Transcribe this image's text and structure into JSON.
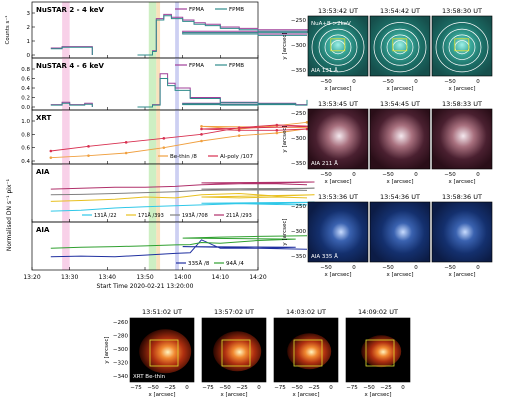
{
  "chart_data": [
    {
      "type": "line",
      "panel": "nustar_low",
      "title": "NuSTAR 2 - 4 keV",
      "ylabel": "Counts s⁻¹",
      "ylim": [
        0,
        3
      ],
      "yticks": [
        "0",
        "1",
        "2",
        "3"
      ],
      "legend": "top-right",
      "series": [
        {
          "name": "FPMA",
          "color": "#a0409a",
          "x": [
            13.25,
            13.28,
            13.3,
            13.34,
            13.36,
            13.46,
            13.48,
            13.52,
            13.53,
            13.55,
            13.57,
            13.6,
            13.63,
            13.66,
            13.7,
            13.75,
            13.8,
            13.88,
            13.95,
            14.0,
            14.1,
            14.2,
            14.3,
            14.33
          ],
          "y": [
            0.5,
            0.6,
            0.6,
            0.6,
            0.0,
            null,
            0.0,
            0.3,
            2.6,
            2.9,
            2.7,
            2.5,
            2.3,
            2.2,
            2.0,
            1.9,
            1.8,
            1.8,
            1.7,
            1.6,
            1.6,
            1.5,
            1.5,
            1.5
          ]
        },
        {
          "name": "FPMB",
          "color": "#2e8b8b",
          "x": [
            13.25,
            13.28,
            13.3,
            13.34,
            13.36,
            13.46,
            13.48,
            13.52,
            13.53,
            13.55,
            13.57,
            13.6,
            13.63,
            13.66,
            13.7,
            13.75,
            13.8,
            13.88,
            13.95,
            14.0,
            14.1,
            14.2,
            14.3,
            14.33
          ],
          "y": [
            0.45,
            0.55,
            0.55,
            0.55,
            0.0,
            null,
            0.0,
            0.25,
            2.5,
            2.8,
            2.6,
            2.4,
            2.2,
            2.1,
            1.9,
            1.8,
            1.7,
            1.7,
            1.6,
            1.5,
            1.5,
            1.4,
            1.4,
            1.4
          ]
        }
      ]
    },
    {
      "type": "line",
      "panel": "nustar_high",
      "title": "NuSTAR 4 - 6 keV",
      "ylim": [
        0,
        0.8
      ],
      "yticks": [
        "0.0",
        "0.2",
        "0.4",
        "0.6",
        "0.8"
      ],
      "legend": "top-right",
      "series": [
        {
          "name": "FPMA",
          "color": "#a0409a",
          "x": [
            13.25,
            13.28,
            13.3,
            13.34,
            13.36,
            13.46,
            13.48,
            13.52,
            13.54,
            13.56,
            13.58,
            13.62,
            13.7,
            13.8,
            13.9,
            14.0,
            14.1,
            14.2,
            14.3,
            14.33
          ],
          "y": [
            0.05,
            0.1,
            0.05,
            0.08,
            0.0,
            null,
            0.0,
            0.05,
            0.7,
            0.5,
            0.4,
            0.2,
            0.1,
            0.08,
            0.06,
            0.08,
            0.05,
            0.07,
            0.05,
            0.1
          ]
        },
        {
          "name": "FPMB",
          "color": "#2e8b8b",
          "x": [
            13.25,
            13.28,
            13.3,
            13.34,
            13.36,
            13.46,
            13.48,
            13.52,
            13.54,
            13.56,
            13.58,
            13.62,
            13.7,
            13.8,
            13.9,
            14.0,
            14.1,
            14.2,
            14.3,
            14.33
          ],
          "y": [
            0.04,
            0.08,
            0.04,
            0.06,
            0.0,
            null,
            0.0,
            0.04,
            0.6,
            0.45,
            0.35,
            0.18,
            0.09,
            0.07,
            0.05,
            0.07,
            0.04,
            0.06,
            0.04,
            0.15
          ]
        }
      ]
    },
    {
      "type": "line",
      "panel": "xrt",
      "title": "XRT",
      "ylim": [
        0.4,
        1.0
      ],
      "yticks": [
        "0.4",
        "0.6",
        "0.8",
        "1.0"
      ],
      "legend": "lower-right",
      "series": [
        {
          "name": "Be-thin /8",
          "color": "#f0a040",
          "x": [
            13.25,
            13.35,
            13.45,
            13.55,
            13.65,
            13.75,
            13.85,
            13.95,
            14.05,
            14.15,
            14.25,
            14.33
          ],
          "y": [
            0.45,
            0.48,
            0.52,
            0.6,
            0.7,
            0.78,
            0.82,
            0.9,
            0.92,
            0.88,
            0.93,
            0.98
          ]
        },
        {
          "name": "Al-poly /107",
          "color": "#d83050",
          "x": [
            13.25,
            13.35,
            13.45,
            13.55,
            13.65,
            13.75,
            13.85,
            13.95,
            14.05,
            14.15,
            14.25,
            14.33
          ],
          "y": [
            0.55,
            0.62,
            0.68,
            0.74,
            0.8,
            0.9,
            0.94,
            0.92,
            0.88,
            0.86,
            0.86,
            0.88
          ]
        }
      ]
    },
    {
      "type": "line",
      "panel": "aia_1",
      "title": "AIA",
      "ylim": [
        0,
        1
      ],
      "legend": "bottom",
      "series": [
        {
          "name": "131Å /22",
          "color": "#30c8e8",
          "x": [
            13.25,
            13.33,
            13.42,
            13.5,
            13.58,
            13.65,
            13.75,
            13.85,
            13.95,
            14.05,
            14.15,
            14.25,
            14.33
          ],
          "y": [
            0.18,
            0.2,
            0.25,
            0.28,
            0.3,
            0.32,
            0.35,
            0.35,
            0.38,
            0.36,
            0.35,
            0.33,
            0.32
          ]
        },
        {
          "name": "171Å /393",
          "color": "#e8c020",
          "x": [
            13.25,
            13.33,
            13.42,
            13.5,
            13.58,
            13.65,
            13.75,
            13.85,
            13.95,
            14.05,
            14.15,
            14.25,
            14.33
          ],
          "y": [
            0.4,
            0.42,
            0.45,
            0.5,
            0.48,
            0.55,
            0.58,
            0.52,
            0.55,
            0.5,
            0.48,
            0.5,
            0.48
          ]
        },
        {
          "name": "193Å /708",
          "color": "#808080",
          "x": [
            13.25,
            13.33,
            13.42,
            13.5,
            13.58,
            13.65,
            13.75,
            13.85,
            13.95,
            14.05,
            14.15,
            14.25,
            14.33
          ],
          "y": [
            0.55,
            0.56,
            0.58,
            0.6,
            0.62,
            0.65,
            0.66,
            0.68,
            0.7,
            0.68,
            0.66,
            0.66,
            0.65
          ]
        },
        {
          "name": "211Å /293",
          "color": "#b0306a",
          "x": [
            13.25,
            13.33,
            13.42,
            13.5,
            13.58,
            13.65,
            13.75,
            13.85,
            13.95,
            14.05,
            14.15,
            14.25,
            14.33
          ],
          "y": [
            0.68,
            0.7,
            0.72,
            0.72,
            0.74,
            0.78,
            0.8,
            0.82,
            0.84,
            0.82,
            0.8,
            0.8,
            0.78
          ]
        }
      ]
    },
    {
      "type": "line",
      "panel": "aia_2",
      "title": "AIA",
      "ylim": [
        0,
        1
      ],
      "legend": "bottom-right",
      "series": [
        {
          "name": "335Å /8",
          "color": "#2030a0",
          "x": [
            13.25,
            13.33,
            13.42,
            13.5,
            13.58,
            13.62,
            13.65,
            13.7,
            13.8,
            13.9,
            14.0,
            14.1,
            14.2,
            14.33
          ],
          "y": [
            0.3,
            0.32,
            0.3,
            0.35,
            0.4,
            0.42,
            0.8,
            0.55,
            0.55,
            0.58,
            0.6,
            0.58,
            0.55,
            0.52
          ]
        },
        {
          "name": "94Å /4",
          "color": "#30a030",
          "x": [
            13.25,
            13.33,
            13.42,
            13.5,
            13.58,
            13.62,
            13.65,
            13.7,
            13.8,
            13.9,
            14.0,
            14.1,
            14.2,
            14.33
          ],
          "y": [
            0.55,
            0.58,
            0.6,
            0.62,
            0.65,
            0.66,
            0.72,
            0.7,
            0.78,
            0.82,
            0.85,
            0.88,
            0.9,
            0.92
          ]
        }
      ]
    }
  ],
  "shared_axis": {
    "xticks": [
      "13:20",
      "13:30",
      "13:40",
      "13:50",
      "14:00",
      "14:10",
      "14:20"
    ],
    "xlabel": "Start Time 2020-02-21 13:20:00",
    "ylabel_norm": "Normalised DN s⁻¹ pix⁻¹"
  },
  "image_panels": {
    "nustar": {
      "label": "NuA+B >2keV",
      "sublabel": "AIA 131 Å",
      "times": [
        "13:53:42 UT",
        "13:54:42 UT",
        "13:58:30 UT"
      ]
    },
    "aia211": {
      "label": "AIA 211 Å",
      "times": [
        "13:53:45 UT",
        "13:54:45 UT",
        "13:58:33 UT"
      ]
    },
    "aia335": {
      "label": "AIA 335 Å",
      "times": [
        "13:53:36 UT",
        "13:54:36 UT",
        "13:58:36 UT"
      ]
    },
    "xrt": {
      "label": "XRT Be-thin",
      "times": [
        "13:51:02 UT",
        "13:57:02 UT",
        "14:03:02 UT",
        "14:09:02 UT"
      ]
    },
    "axis": {
      "xlabel": "x [arcsec]",
      "ylabel": "y [arcsec]",
      "right_xticks": [
        "−50",
        "0"
      ],
      "right_yticks": [
        "−250",
        "−300",
        "−350"
      ],
      "xrt_xticks": [
        "−75",
        "−50",
        "−25",
        "0"
      ],
      "xrt_yticks": [
        "−260",
        "−280",
        "−300",
        "−320",
        "−340"
      ]
    }
  },
  "colors": {
    "shade_pink": "#f7c8e4",
    "shade_green": "#c4ecb8",
    "shade_orange": "#f8dcb0",
    "shade_blue": "#c4c8f0"
  }
}
